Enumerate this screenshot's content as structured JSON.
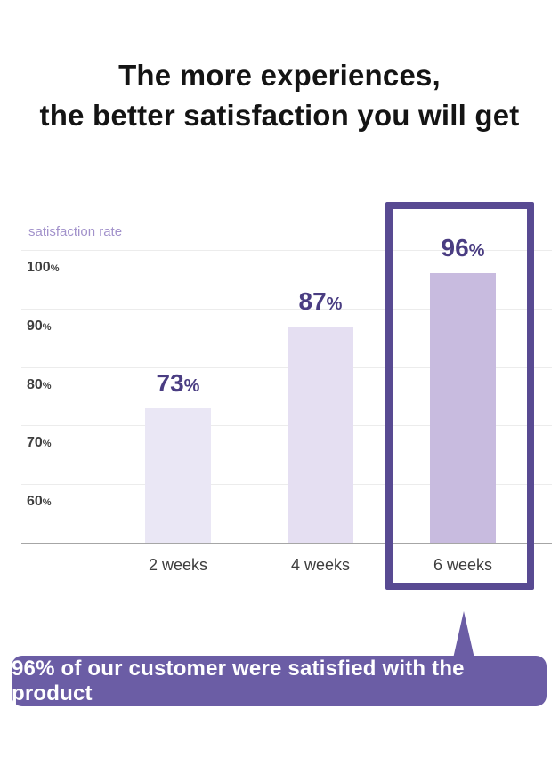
{
  "title": {
    "line1": "The more experiences,",
    "line2": "the better satisfaction you will get"
  },
  "chart_data": {
    "type": "bar",
    "title": "satisfaction rate",
    "unit": "%",
    "categories": [
      "2 weeks",
      "4 weeks",
      "6 weeks"
    ],
    "values": [
      73,
      87,
      96
    ],
    "y_ticks": [
      100,
      90,
      80,
      70,
      60
    ],
    "ylim": [
      50,
      105
    ],
    "grid": true,
    "legend": "none",
    "highlighted_category": "6 weeks",
    "bar_colors": [
      "#eae7f5",
      "#e5dff2",
      "#c8bbdf"
    ],
    "value_label_color": "#4a3d82",
    "highlight_border_color": "#584a92"
  },
  "callout": {
    "text": "96% of our customer were satisfied with the product",
    "bg_color": "#6b5da5",
    "text_color": "#ffffff"
  }
}
